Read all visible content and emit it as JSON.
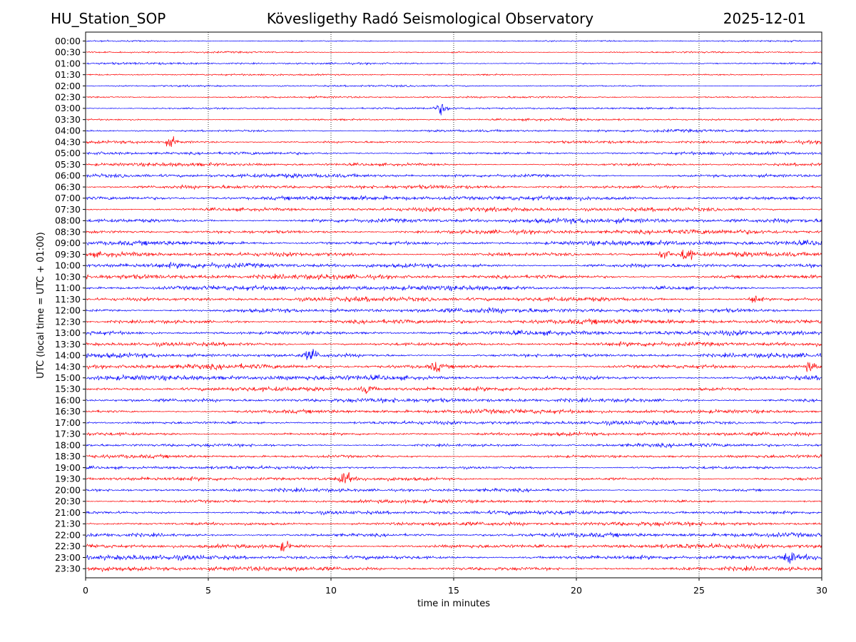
{
  "header": {
    "station": "HU_Station_SOP",
    "observatory": "Kövesligethy Radó Seismological Observatory",
    "date": "2025-12-01"
  },
  "chart_data": {
    "type": "line",
    "title": "Kövesligethy Radó Seismological Observatory",
    "xlabel": "time in minutes",
    "ylabel": "UTC (local time = UTC + 01:00)",
    "xlim": [
      0,
      30
    ],
    "x_ticks": [
      "0",
      "5",
      "10",
      "15",
      "20",
      "25",
      "30"
    ],
    "x_tick_values": [
      0,
      5,
      10,
      15,
      20,
      25,
      30
    ],
    "grid": "vertical dotted at x ticks",
    "series_colors": [
      "#0000ff",
      "#ff0000"
    ],
    "row_labels": [
      "00:00",
      "00:30",
      "01:00",
      "01:30",
      "02:00",
      "02:30",
      "03:00",
      "03:30",
      "04:00",
      "04:30",
      "05:00",
      "05:30",
      "06:00",
      "06:30",
      "07:00",
      "07:30",
      "08:00",
      "08:30",
      "09:00",
      "09:30",
      "10:00",
      "10:30",
      "11:00",
      "11:30",
      "12:00",
      "12:30",
      "13:00",
      "13:30",
      "14:00",
      "14:30",
      "15:00",
      "15:30",
      "16:00",
      "16:30",
      "17:00",
      "17:30",
      "18:00",
      "18:30",
      "19:00",
      "19:30",
      "20:00",
      "20:30",
      "21:00",
      "21:30",
      "22:00",
      "22:30",
      "23:00",
      "23:30"
    ],
    "noise_amplitude": [
      0.25,
      0.3,
      0.35,
      0.28,
      0.3,
      0.32,
      0.35,
      0.35,
      0.45,
      0.5,
      0.55,
      0.55,
      0.65,
      0.6,
      0.75,
      0.7,
      0.8,
      0.75,
      0.85,
      0.8,
      0.85,
      0.8,
      0.8,
      0.75,
      0.8,
      0.8,
      0.8,
      0.75,
      0.75,
      0.8,
      0.85,
      0.7,
      0.7,
      0.7,
      0.65,
      0.6,
      0.6,
      0.55,
      0.55,
      0.6,
      0.55,
      0.55,
      0.65,
      0.7,
      0.7,
      0.8,
      0.85,
      0.8
    ],
    "events": [
      {
        "row": 6,
        "minute": 14.5,
        "amplitude": 1.6
      },
      {
        "row": 9,
        "minute": 3.5,
        "amplitude": 1.3
      },
      {
        "row": 19,
        "minute": 24.5,
        "amplitude": 2.2
      },
      {
        "row": 19,
        "minute": 23.6,
        "amplitude": 1.4
      },
      {
        "row": 23,
        "minute": 27.3,
        "amplitude": 1.3
      },
      {
        "row": 28,
        "minute": 9.2,
        "amplitude": 2.0
      },
      {
        "row": 29,
        "minute": 14.3,
        "amplitude": 1.4
      },
      {
        "row": 29,
        "minute": 29.5,
        "amplitude": 1.3
      },
      {
        "row": 31,
        "minute": 11.5,
        "amplitude": 1.3
      },
      {
        "row": 39,
        "minute": 10.6,
        "amplitude": 2.0
      },
      {
        "row": 45,
        "minute": 8.1,
        "amplitude": 1.4
      },
      {
        "row": 46,
        "minute": 28.7,
        "amplitude": 1.3
      }
    ]
  }
}
